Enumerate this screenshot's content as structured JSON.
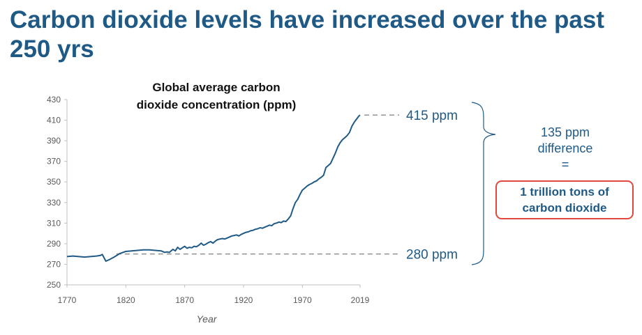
{
  "slide": {
    "title": "Carbon dioxide levels have increased over the past 250 yrs"
  },
  "chart_data": {
    "type": "line",
    "title_lines": [
      "Global average carbon",
      "dioxide concentration (ppm)"
    ],
    "xlabel": "Year",
    "ylabel": "",
    "xlim": [
      1770,
      2019
    ],
    "ylim": [
      250,
      430
    ],
    "x_ticks": [
      1770,
      1820,
      1870,
      1920,
      1970,
      2019
    ],
    "y_ticks": [
      250,
      270,
      290,
      310,
      330,
      350,
      370,
      390,
      410,
      430
    ],
    "grid": false,
    "legend": "none",
    "series": [
      {
        "name": "CO2 concentration (ppm)",
        "x": [
          1770,
          1775,
          1780,
          1785,
          1790,
          1795,
          1798,
          1800,
          1803,
          1806,
          1810,
          1815,
          1820,
          1825,
          1830,
          1835,
          1840,
          1845,
          1850,
          1853,
          1855,
          1857,
          1860,
          1862,
          1864,
          1866,
          1868,
          1870,
          1872,
          1874,
          1876,
          1878,
          1880,
          1882,
          1884,
          1886,
          1888,
          1890,
          1892,
          1894,
          1896,
          1898,
          1900,
          1902,
          1904,
          1906,
          1908,
          1910,
          1912,
          1914,
          1916,
          1918,
          1920,
          1922,
          1924,
          1926,
          1928,
          1930,
          1932,
          1934,
          1936,
          1938,
          1940,
          1942,
          1944,
          1946,
          1948,
          1950,
          1952,
          1954,
          1956,
          1958,
          1960,
          1962,
          1964,
          1966,
          1968,
          1970,
          1972,
          1974,
          1976,
          1978,
          1980,
          1982,
          1984,
          1986,
          1988,
          1990,
          1992,
          1994,
          1996,
          1998,
          2000,
          2002,
          2004,
          2006,
          2008,
          2010,
          2012,
          2014,
          2016,
          2018,
          2019
        ],
        "values": [
          277.5,
          278,
          277.5,
          277,
          277.5,
          278,
          278.5,
          279.5,
          273,
          274.5,
          277,
          280.5,
          282.5,
          283,
          283.5,
          284,
          284,
          283.5,
          283,
          281.5,
          282,
          281.5,
          284.5,
          283,
          286.5,
          284.5,
          286,
          287.5,
          285.5,
          286.5,
          286,
          287.5,
          287,
          288.5,
          290.5,
          288.5,
          289.5,
          291,
          292,
          290.5,
          292.5,
          294,
          294.5,
          295,
          294.5,
          295.5,
          296.5,
          297.5,
          298,
          298.5,
          297.5,
          299,
          300,
          301,
          301.5,
          302.5,
          303,
          304,
          304.5,
          305.5,
          305,
          306,
          307,
          308,
          307.5,
          309.5,
          310,
          311,
          310.5,
          312,
          311.5,
          314,
          317,
          324,
          330,
          333,
          338,
          342,
          344,
          346,
          347.5,
          348.5,
          350,
          351,
          353,
          354.5,
          356.5,
          364,
          366,
          368,
          373,
          378,
          384,
          388,
          391,
          393,
          395,
          398,
          404,
          408,
          411,
          414,
          415
        ]
      }
    ],
    "annotations": {
      "upper_ref_label": "415 ppm",
      "lower_ref_label": "280 ppm",
      "upper_ref_value": 415,
      "lower_ref_value": 280,
      "difference_lines": [
        "135 ppm",
        "difference",
        "="
      ],
      "callout_lines": [
        "1 trillion tons of",
        "carbon dioxide"
      ]
    }
  },
  "colors": {
    "title": "#1f5a86",
    "line": "#1f5a86",
    "reference": "#8a8a8a",
    "callout_border": "#e0483f",
    "axis": "#bfbfbf"
  }
}
